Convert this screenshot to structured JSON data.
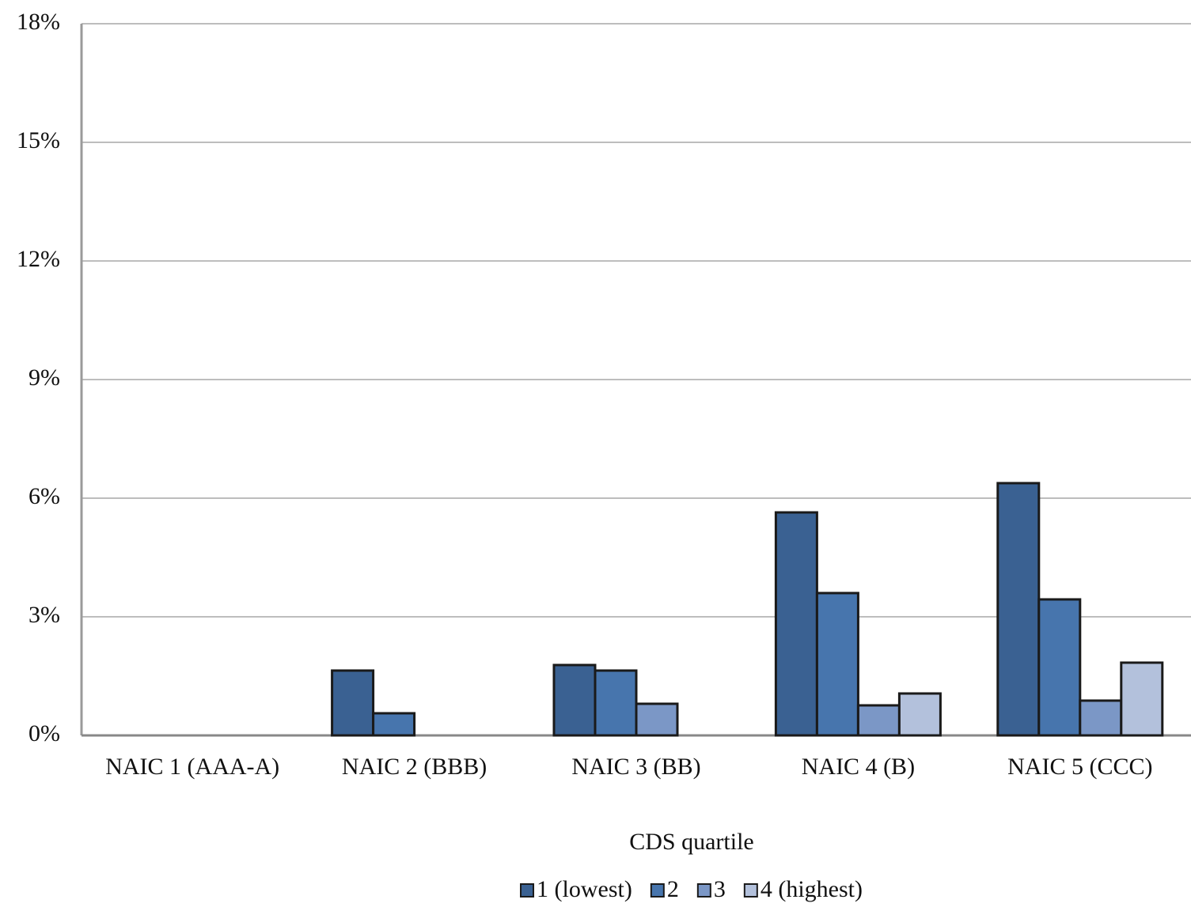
{
  "chart_data": {
    "type": "bar",
    "x_label": "CDS quartile",
    "categories": [
      "NAIC 1 (AAA-A)",
      "NAIC 2 (BBB)",
      "NAIC 3 (BB)",
      "NAIC 4 (B)",
      "NAIC 5 (CCC)"
    ],
    "series": [
      {
        "name": "1 (lowest)",
        "color": "#3a6192",
        "values": [
          0,
          1.64,
          1.78,
          5.64,
          6.38
        ]
      },
      {
        "name": "2",
        "color": "#4775ad",
        "values": [
          0,
          0.56,
          1.64,
          3.6,
          3.44
        ]
      },
      {
        "name": "3",
        "color": "#7b97c6",
        "values": [
          0,
          0,
          0.8,
          0.76,
          0.88
        ]
      },
      {
        "name": "4 (highest)",
        "color": "#b3c1dc",
        "values": [
          0,
          0,
          0,
          1.06,
          1.84
        ]
      }
    ],
    "ylim": [
      0,
      18
    ],
    "yticks": [
      {
        "value": 0,
        "label": "0%"
      },
      {
        "value": 3,
        "label": "3%"
      },
      {
        "value": 6,
        "label": "6%"
      },
      {
        "value": 9,
        "label": "9%"
      },
      {
        "value": 12,
        "label": "12%"
      },
      {
        "value": 15,
        "label": "15%"
      },
      {
        "value": 18,
        "label": "18%"
      }
    ],
    "grid": true
  }
}
